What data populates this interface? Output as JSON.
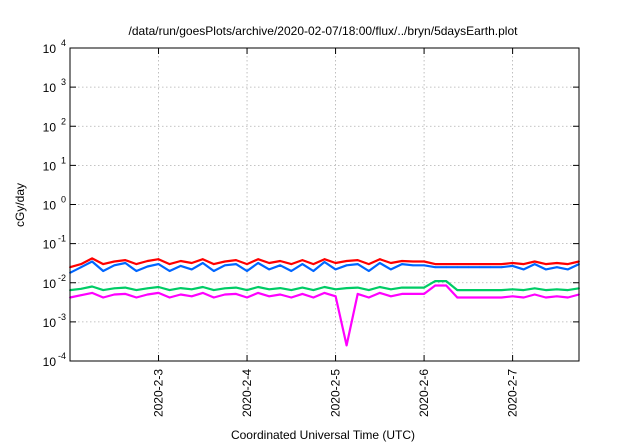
{
  "chart_data": {
    "type": "line",
    "title": "/data/run/goesPlots/archive/2020-02-07/18:00/flux/../bryn/5daysEarth.plot",
    "xlabel": "Coordinated Universal Time (UTC)",
    "ylabel": "cGy/day",
    "y_scale": "log",
    "ylim": [
      0.0001,
      10000
    ],
    "xlim": [
      "2020-02-02T00:00",
      "2020-02-07T18:00"
    ],
    "grid": true,
    "x_ticks": [
      {
        "x": "2020-02-03T00:00",
        "label": "2020-2-3"
      },
      {
        "x": "2020-02-04T00:00",
        "label": "2020-2-4"
      },
      {
        "x": "2020-02-05T00:00",
        "label": "2020-2-5"
      },
      {
        "x": "2020-02-06T00:00",
        "label": "2020-2-6"
      },
      {
        "x": "2020-02-07T00:00",
        "label": "2020-2-7"
      }
    ],
    "y_ticks": [
      {
        "value": 0.0001,
        "base": "10",
        "exp": "-4"
      },
      {
        "value": 0.001,
        "base": "10",
        "exp": "-3"
      },
      {
        "value": 0.01,
        "base": "10",
        "exp": "-2"
      },
      {
        "value": 0.1,
        "base": "10",
        "exp": "-1"
      },
      {
        "value": 1,
        "base": "10",
        "exp": "0"
      },
      {
        "value": 10,
        "base": "10",
        "exp": "1"
      },
      {
        "value": 100,
        "base": "10",
        "exp": "2"
      },
      {
        "value": 1000,
        "base": "10",
        "exp": "3"
      },
      {
        "value": 10000,
        "base": "10",
        "exp": "4"
      }
    ],
    "x": [
      "2020-02-02T00:00",
      "2020-02-02T03:00",
      "2020-02-02T06:00",
      "2020-02-02T09:00",
      "2020-02-02T12:00",
      "2020-02-02T15:00",
      "2020-02-02T18:00",
      "2020-02-02T21:00",
      "2020-02-03T00:00",
      "2020-02-03T03:00",
      "2020-02-03T06:00",
      "2020-02-03T09:00",
      "2020-02-03T12:00",
      "2020-02-03T15:00",
      "2020-02-03T18:00",
      "2020-02-03T21:00",
      "2020-02-04T00:00",
      "2020-02-04T03:00",
      "2020-02-04T06:00",
      "2020-02-04T09:00",
      "2020-02-04T12:00",
      "2020-02-04T15:00",
      "2020-02-04T18:00",
      "2020-02-04T21:00",
      "2020-02-05T00:00",
      "2020-02-05T03:00",
      "2020-02-05T06:00",
      "2020-02-05T09:00",
      "2020-02-05T12:00",
      "2020-02-05T15:00",
      "2020-02-05T18:00",
      "2020-02-05T21:00",
      "2020-02-06T00:00",
      "2020-02-06T03:00",
      "2020-02-06T06:00",
      "2020-02-06T09:00",
      "2020-02-06T12:00",
      "2020-02-06T15:00",
      "2020-02-06T18:00",
      "2020-02-06T21:00",
      "2020-02-07T00:00",
      "2020-02-07T03:00",
      "2020-02-07T06:00",
      "2020-02-07T09:00",
      "2020-02-07T12:00",
      "2020-02-07T15:00",
      "2020-02-07T18:00"
    ],
    "series": [
      {
        "color": "#ff0000",
        "values": [
          0.025,
          0.03,
          0.042,
          0.03,
          0.035,
          0.038,
          0.03,
          0.036,
          0.04,
          0.03,
          0.036,
          0.032,
          0.04,
          0.03,
          0.035,
          0.038,
          0.03,
          0.04,
          0.032,
          0.036,
          0.03,
          0.038,
          0.03,
          0.04,
          0.032,
          0.036,
          0.038,
          0.03,
          0.04,
          0.032,
          0.036,
          0.035,
          0.035,
          0.03,
          0.03,
          0.03,
          0.03,
          0.03,
          0.03,
          0.03,
          0.032,
          0.03,
          0.035,
          0.03,
          0.032,
          0.03,
          0.035
        ]
      },
      {
        "color": "#0066ff",
        "values": [
          0.018,
          0.025,
          0.035,
          0.02,
          0.028,
          0.032,
          0.02,
          0.026,
          0.03,
          0.02,
          0.027,
          0.022,
          0.032,
          0.02,
          0.028,
          0.03,
          0.02,
          0.032,
          0.022,
          0.028,
          0.02,
          0.03,
          0.02,
          0.034,
          0.022,
          0.028,
          0.03,
          0.02,
          0.032,
          0.022,
          0.03,
          0.028,
          0.028,
          0.025,
          0.025,
          0.025,
          0.025,
          0.025,
          0.025,
          0.025,
          0.027,
          0.022,
          0.03,
          0.022,
          0.025,
          0.022,
          0.03
        ]
      },
      {
        "color": "#00cc66",
        "values": [
          0.0065,
          0.007,
          0.008,
          0.0065,
          0.0072,
          0.0075,
          0.0065,
          0.0072,
          0.0078,
          0.0065,
          0.0073,
          0.0068,
          0.0078,
          0.0065,
          0.0072,
          0.0075,
          0.0065,
          0.0078,
          0.0068,
          0.0073,
          0.0065,
          0.0075,
          0.0065,
          0.0078,
          0.0068,
          0.0073,
          0.0075,
          0.0065,
          0.0078,
          0.0068,
          0.0075,
          0.0075,
          0.0075,
          0.011,
          0.011,
          0.0065,
          0.0065,
          0.0065,
          0.0065,
          0.0065,
          0.0068,
          0.0065,
          0.0072,
          0.0065,
          0.0068,
          0.0065,
          0.0072
        ]
      },
      {
        "color": "#ff00ff",
        "values": [
          0.0042,
          0.0048,
          0.0055,
          0.0042,
          0.005,
          0.0052,
          0.0042,
          0.005,
          0.0055,
          0.0042,
          0.005,
          0.0045,
          0.0055,
          0.0042,
          0.005,
          0.0052,
          0.0042,
          0.0055,
          0.0045,
          0.005,
          0.0042,
          0.0052,
          0.0042,
          0.0055,
          0.0045,
          0.00025,
          0.0052,
          0.0042,
          0.0055,
          0.0045,
          0.0052,
          0.0052,
          0.0052,
          0.0085,
          0.0085,
          0.0042,
          0.0042,
          0.0042,
          0.0042,
          0.0042,
          0.0045,
          0.0042,
          0.005,
          0.0042,
          0.0045,
          0.0042,
          0.005
        ]
      }
    ]
  }
}
